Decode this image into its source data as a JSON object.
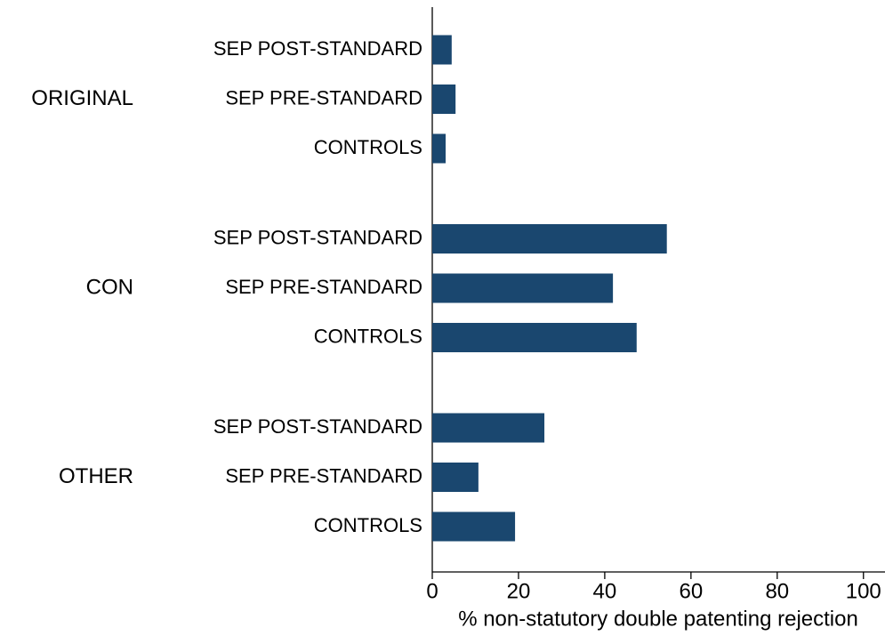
{
  "chart_data": {
    "type": "grouped-hbar",
    "x_label": "% non-statutory double patenting rejection",
    "groups": [
      {
        "label": "ORIGINAL",
        "categories": [
          "SEP POST-STANDARD",
          "SEP PRE-STANDARD",
          "CONTROLS"
        ],
        "values": [
          4.5,
          5.4,
          3.1
        ]
      },
      {
        "label": "CON",
        "categories": [
          "SEP POST-STANDARD",
          "SEP PRE-STANDARD",
          "CONTROLS"
        ],
        "values": [
          54.4,
          41.9,
          47.4
        ]
      },
      {
        "label": "OTHER",
        "categories": [
          "SEP POST-STANDARD",
          "SEP PRE-STANDARD",
          "CONTROLS"
        ],
        "values": [
          26.0,
          10.7,
          19.2
        ]
      }
    ],
    "color": "#1a476f",
    "xlim": [
      0,
      105
    ],
    "xticks": [
      0,
      20,
      40,
      60,
      80,
      100
    ],
    "grid": false
  }
}
